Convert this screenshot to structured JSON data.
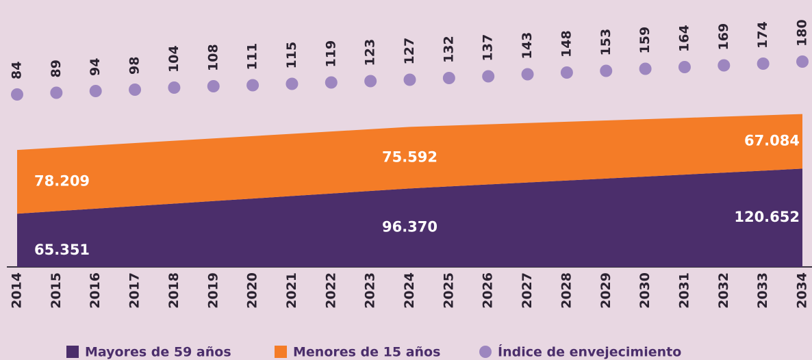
{
  "chart_data": {
    "type": "area",
    "categories": [
      "2014",
      "2015",
      "2016",
      "2017",
      "2018",
      "2019",
      "2020",
      "2021",
      "2022",
      "2023",
      "2024",
      "2025",
      "2026",
      "2027",
      "2028",
      "2029",
      "2030",
      "2031",
      "2032",
      "2033",
      "2034"
    ],
    "stacked": true,
    "ylim": [
      0,
      200000
    ],
    "series": [
      {
        "name": "Mayores de 59 años",
        "color": "#4b2e6b",
        "values": [
          65351,
          68453,
          71555,
          74657,
          77759,
          80861,
          83962,
          87064,
          90166,
          93268,
          96370,
          98798,
          101226,
          103654,
          106082,
          108511,
          110939,
          113367,
          115795,
          118223,
          120652
        ],
        "value_labels": [
          "65.351",
          null,
          null,
          null,
          null,
          null,
          null,
          null,
          null,
          null,
          "96.370",
          null,
          null,
          null,
          null,
          null,
          null,
          null,
          null,
          null,
          "120.652"
        ]
      },
      {
        "name": "Menores de 15 años",
        "color": "#f47c27",
        "values": [
          78209,
          77947,
          77686,
          77424,
          77163,
          76901,
          76639,
          76378,
          76116,
          75854,
          75592,
          74741,
          73890,
          73039,
          72188,
          71338,
          70487,
          69636,
          68785,
          67934,
          67084
        ],
        "value_labels": [
          "78.209",
          null,
          null,
          null,
          null,
          null,
          null,
          null,
          null,
          null,
          "75.592",
          null,
          null,
          null,
          null,
          null,
          null,
          null,
          null,
          null,
          "67.084"
        ]
      },
      {
        "name": "Índice de envejecimiento",
        "color": "#9d86bf",
        "type": "scatter",
        "axis": "y2",
        "values": [
          84,
          89,
          94,
          98,
          104,
          108,
          111,
          115,
          119,
          123,
          127,
          132,
          137,
          143,
          148,
          153,
          159,
          164,
          169,
          174,
          180
        ]
      }
    ],
    "y2lim": [
      40,
      200
    ]
  }
}
